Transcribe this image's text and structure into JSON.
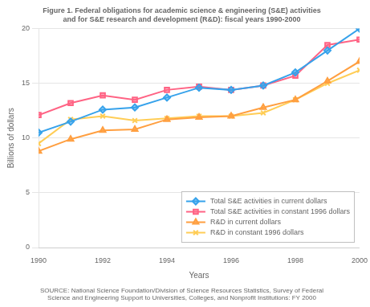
{
  "chart_data": {
    "type": "line",
    "title": [
      "Figure 1. Federal obligations for academic science & engineering (S&E) activities",
      "and for S&E research and development (R&D): fiscal years 1990-2000"
    ],
    "source": [
      "SOURCE: National Science Foundation/Division of Science Resources Statistics, Survey of Federal",
      "Science and Engineering Support to Universities, Colleges, and Nonprofit Institutions: FY 2000"
    ],
    "x_label": "Years",
    "y_label": "Billions of dollars",
    "x": [
      1990,
      1991,
      1992,
      1993,
      1994,
      1995,
      1996,
      1997,
      1998,
      1999,
      2000
    ],
    "series": [
      {
        "name": "Total S&E activities in current dollars",
        "marker": "diamond",
        "values": [
          10.5,
          11.5,
          12.6,
          12.8,
          13.7,
          14.6,
          14.4,
          14.8,
          16.0,
          18.0,
          20.0
        ]
      },
      {
        "name": "Total S&E activities in constant 1996 dollars",
        "marker": "square",
        "values": [
          12.1,
          13.2,
          13.9,
          13.5,
          14.4,
          14.7,
          14.4,
          14.8,
          15.7,
          18.5,
          19.0
        ]
      },
      {
        "name": "R&D in current dollars",
        "marker": "triangle",
        "values": [
          8.8,
          9.9,
          10.7,
          10.8,
          11.7,
          11.9,
          12.0,
          12.8,
          13.5,
          15.2,
          17.0
        ]
      },
      {
        "name": "R&D in constant 1996 dollars",
        "marker": "x",
        "values": [
          9.5,
          11.7,
          12.0,
          11.6,
          11.8,
          12.0,
          12.0,
          12.3,
          13.5,
          15.0,
          16.2
        ]
      }
    ],
    "xlim": [
      1990,
      2000
    ],
    "xticks": [
      1990,
      1992,
      1994,
      1996,
      1998,
      2000
    ],
    "ylim": [
      0,
      20
    ],
    "yticks": [
      0,
      5,
      10,
      15,
      20
    ],
    "grid": "y",
    "legend": "lower right"
  }
}
